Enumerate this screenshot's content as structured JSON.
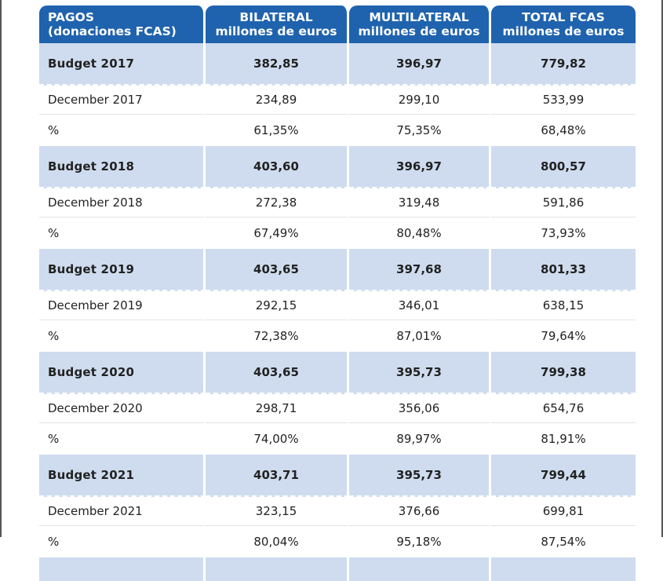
{
  "header": {
    "col1_line1": "PAGOS",
    "col1_line2": "(donaciones FCAS)",
    "col2_line1": "BILATERAL",
    "col2_line2": "millones de euros",
    "col3_line1": "MULTILATERAL",
    "col3_line2": "millones de euros",
    "col4_line1": "TOTAL FCAS",
    "col4_line2": "millones de euros"
  },
  "rows": [
    {
      "label": "Budget  2017",
      "bilateral": "382,85",
      "multilateral": "396,97",
      "total": "779,82"
    },
    {
      "label": "December 2017",
      "bilateral": "234,89",
      "multilateral": "299,10",
      "total": "533,99"
    },
    {
      "label": "%",
      "bilateral": "61,35%",
      "multilateral": "75,35%",
      "total": "68,48%"
    },
    {
      "label": "Budget  2018",
      "bilateral": "403,60",
      "multilateral": "396,97",
      "total": "800,57"
    },
    {
      "label": "December 2018",
      "bilateral": "272,38",
      "multilateral": "319,48",
      "total": "591,86"
    },
    {
      "label": "%",
      "bilateral": "67,49%",
      "multilateral": "80,48%",
      "total": "73,93%"
    },
    {
      "label": "Budget  2019",
      "bilateral": "403,65",
      "multilateral": "397,68",
      "total": "801,33"
    },
    {
      "label": "December 2019",
      "bilateral": "292,15",
      "multilateral": "346,01",
      "total": "638,15"
    },
    {
      "label": "%",
      "bilateral": "72,38%",
      "multilateral": "87,01%",
      "total": "79,64%"
    },
    {
      "label": "Budget  2020",
      "bilateral": "403,65",
      "multilateral": "395,73",
      "total": "799,38"
    },
    {
      "label": "December 2020",
      "bilateral": "298,71",
      "multilateral": "356,06",
      "total": "654,76"
    },
    {
      "label": "%",
      "bilateral": "74,00%",
      "multilateral": "89,97%",
      "total": "81,91%"
    },
    {
      "label": "Budget  2021",
      "bilateral": "403,71",
      "multilateral": "395,73",
      "total": "799,44"
    },
    {
      "label": "December 2021",
      "bilateral": "323,15",
      "multilateral": "376,66",
      "total": "699,81"
    },
    {
      "label": "%",
      "bilateral": "80,04%",
      "multilateral": "95,18%",
      "total": "87,54%"
    }
  ],
  "colors": {
    "header_bg": "#1f63ae",
    "budget_row_bg": "#cfdcef",
    "plain_row_bg": "#ffffff"
  }
}
